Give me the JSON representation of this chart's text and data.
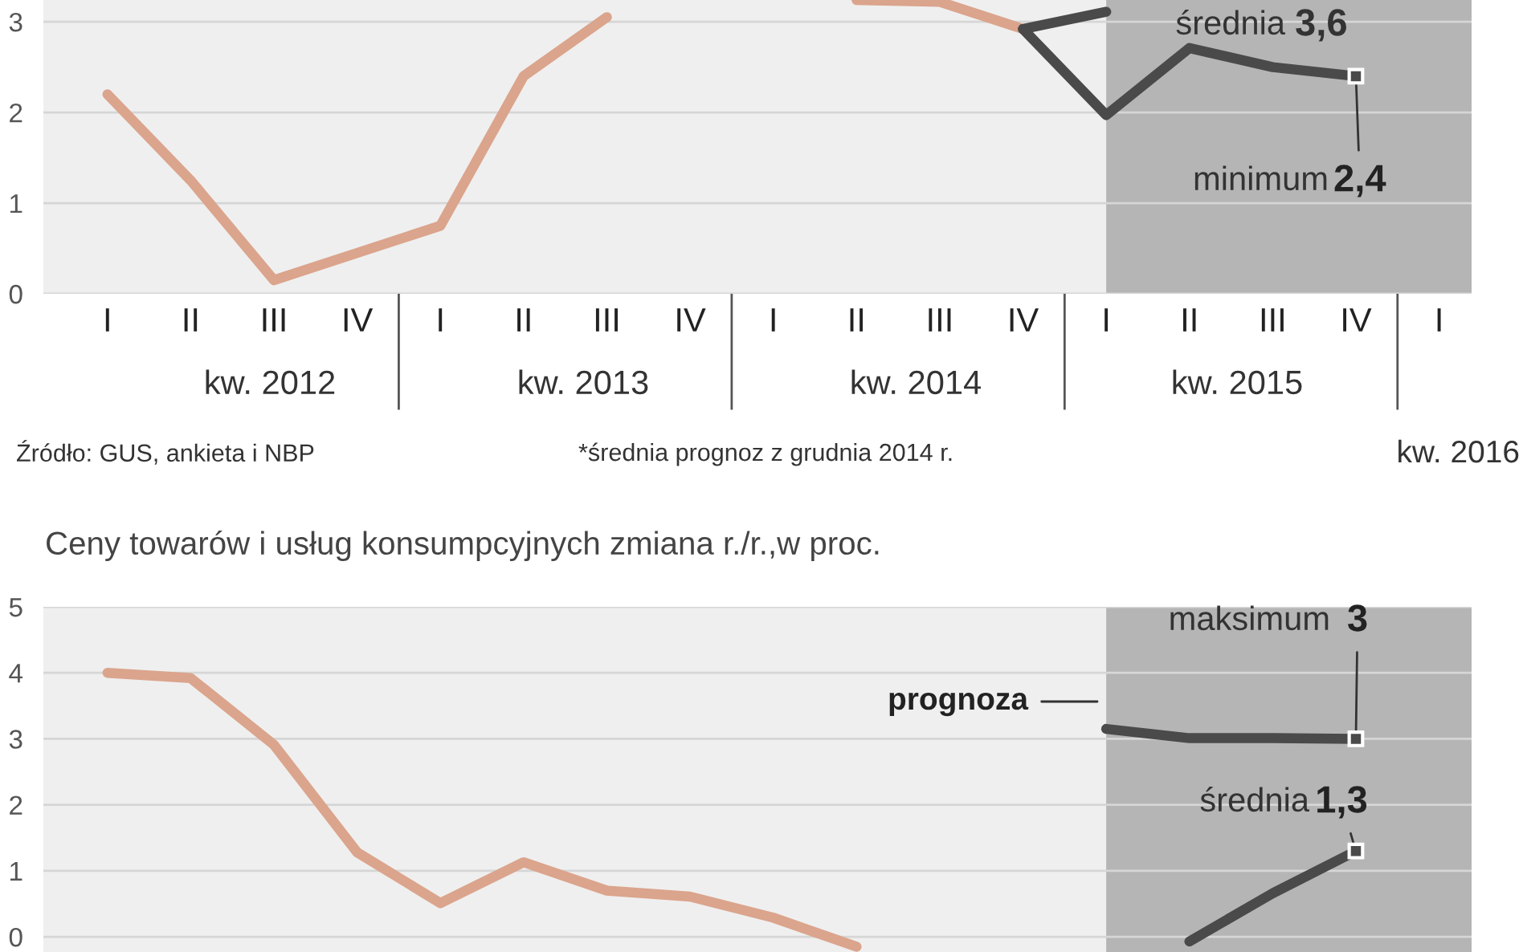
{
  "chart_data": [
    {
      "type": "line",
      "categories": [
        "I",
        "II",
        "III",
        "IV",
        "I",
        "II",
        "III",
        "IV",
        "I",
        "II",
        "III",
        "IV",
        "I",
        "II",
        "III",
        "IV",
        "I"
      ],
      "ylim": [
        0,
        3.24
      ],
      "yticks": [
        0,
        1,
        2,
        3
      ],
      "grid": "y",
      "series": [
        {
          "color": "#dba48c",
          "values": [
            2.2,
            1.25,
            0.15,
            0.45,
            0.75,
            2.4,
            3.05,
            null,
            null,
            3.24,
            3.22,
            2.92,
            null,
            null,
            null,
            null,
            null
          ]
        },
        {
          "color": "#4a4a4a",
          "values": [
            null,
            null,
            null,
            null,
            null,
            null,
            null,
            null,
            null,
            null,
            null,
            2.92,
            3.11,
            null,
            null,
            null,
            null
          ]
        },
        {
          "color": "#4a4a4a",
          "values": [
            null,
            null,
            null,
            null,
            null,
            null,
            null,
            null,
            null,
            null,
            null,
            2.92,
            1.97,
            2.71,
            2.5,
            2.4,
            null
          ]
        }
      ],
      "annotations": [
        "kw. 2012",
        "kw. 2013",
        "kw. 2014",
        "kw. 2015",
        "kw. 2016",
        "Źródło: GUS, ankieta i NBP",
        "*średnia prognoz z grudnia 2014 r.",
        "średnia",
        "3,6",
        "minimum",
        {
          "text": "2,4",
          "y": 2.4
        }
      ]
    },
    {
      "type": "line",
      "title": "Ceny towarów i usług konsumpcyjnych zmiana r./r.,w proc.",
      "categories": [
        null,
        null,
        null,
        null,
        null,
        null,
        null,
        null,
        null,
        null,
        null,
        null,
        null,
        null,
        null,
        null,
        null
      ],
      "ylim": [
        -0.23,
        5
      ],
      "yticks": [
        0,
        1,
        2,
        3,
        4,
        5
      ],
      "grid": "y",
      "tick_labels": "y",
      "series": [
        {
          "color": "#dba48c",
          "values": [
            4.0,
            3.92,
            2.91,
            1.28,
            0.51,
            1.13,
            0.7,
            0.61,
            0.29,
            -0.15,
            null,
            null,
            null,
            null,
            null,
            null,
            null
          ]
        },
        {
          "color": "#4a4a4a",
          "values": [
            null,
            null,
            null,
            null,
            null,
            null,
            null,
            null,
            null,
            null,
            null,
            null,
            3.15,
            3.01,
            3.01,
            3.0,
            null
          ]
        },
        {
          "color": "#4a4a4a",
          "values": [
            null,
            null,
            null,
            null,
            null,
            null,
            null,
            null,
            null,
            null,
            null,
            null,
            null,
            -0.07,
            0.66,
            1.3,
            null
          ]
        }
      ],
      "annotations": [
        "maksimum",
        "3",
        "średnia",
        "1,3",
        "prognoza"
      ]
    }
  ]
}
